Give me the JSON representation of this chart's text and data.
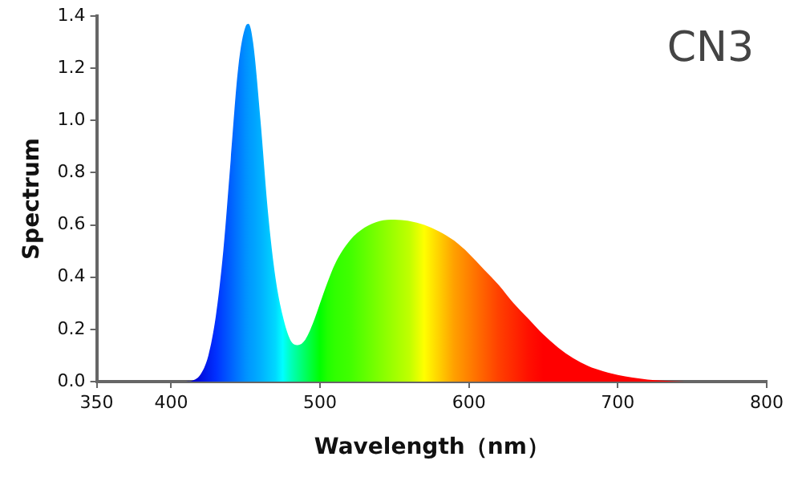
{
  "chart_data": {
    "type": "area",
    "title": "CN3",
    "xlabel": "Wavelength（nm）",
    "ylabel": "Spectrum",
    "xlim": [
      350,
      800
    ],
    "xticks": [
      350,
      400,
      500,
      600,
      700,
      800
    ],
    "ylim": [
      0,
      1.4
    ],
    "yticks": [
      {
        "value": 0,
        "label": "0.0"
      },
      0.2,
      0.4,
      0.6,
      0.8,
      {
        "value": 1,
        "label": "1.0"
      },
      1.2,
      1.4
    ],
    "grid": false,
    "legend": false,
    "series": [
      {
        "x": [
          350,
          410,
          415,
          420,
          425,
          430,
          435,
          440,
          445,
          450,
          452,
          455,
          460,
          465,
          470,
          475,
          480,
          485,
          490,
          495,
          500,
          505,
          510,
          520,
          530,
          540,
          550,
          560,
          570,
          580,
          590,
          600,
          610,
          620,
          630,
          640,
          650,
          660,
          670,
          680,
          690,
          700,
          710,
          720,
          730,
          745
        ],
        "values": [
          0,
          0,
          0.005,
          0.03,
          0.1,
          0.25,
          0.5,
          0.85,
          1.2,
          1.36,
          1.37,
          1.3,
          1.0,
          0.65,
          0.4,
          0.25,
          0.16,
          0.14,
          0.16,
          0.22,
          0.3,
          0.38,
          0.45,
          0.54,
          0.59,
          0.615,
          0.62,
          0.615,
          0.6,
          0.575,
          0.54,
          0.49,
          0.43,
          0.37,
          0.3,
          0.24,
          0.18,
          0.13,
          0.09,
          0.06,
          0.04,
          0.025,
          0.015,
          0.008,
          0.004,
          0
        ],
        "colors": [
          "#0000c0",
          "#0000c0",
          "#0000d0",
          "#0010e0",
          "#0020f0",
          "#0030ff",
          "#0048ff",
          "#0060ff",
          "#0078ff",
          "#0090ff",
          "#0098ff",
          "#00a0ff",
          "#00b0ff",
          "#00c4ff",
          "#00d8ff",
          "#00ffff",
          "#00ffc0",
          "#00ff90",
          "#00ff60",
          "#00ff30",
          "#00ff00",
          "#20ff00",
          "#30ff00",
          "#40ff00",
          "#60ff00",
          "#80ff00",
          "#a0ff00",
          "#c0ff00",
          "#ffff00",
          "#ffd000",
          "#ffa000",
          "#ff8000",
          "#ff6000",
          "#ff4000",
          "#ff2800",
          "#ff1000",
          "#ff0000",
          "#ff0000",
          "#ff0000",
          "#ff0000",
          "#ff0000",
          "#ff0000",
          "#ff0000",
          "#ff0000",
          "#ff0000",
          "#ff0000"
        ]
      }
    ]
  }
}
